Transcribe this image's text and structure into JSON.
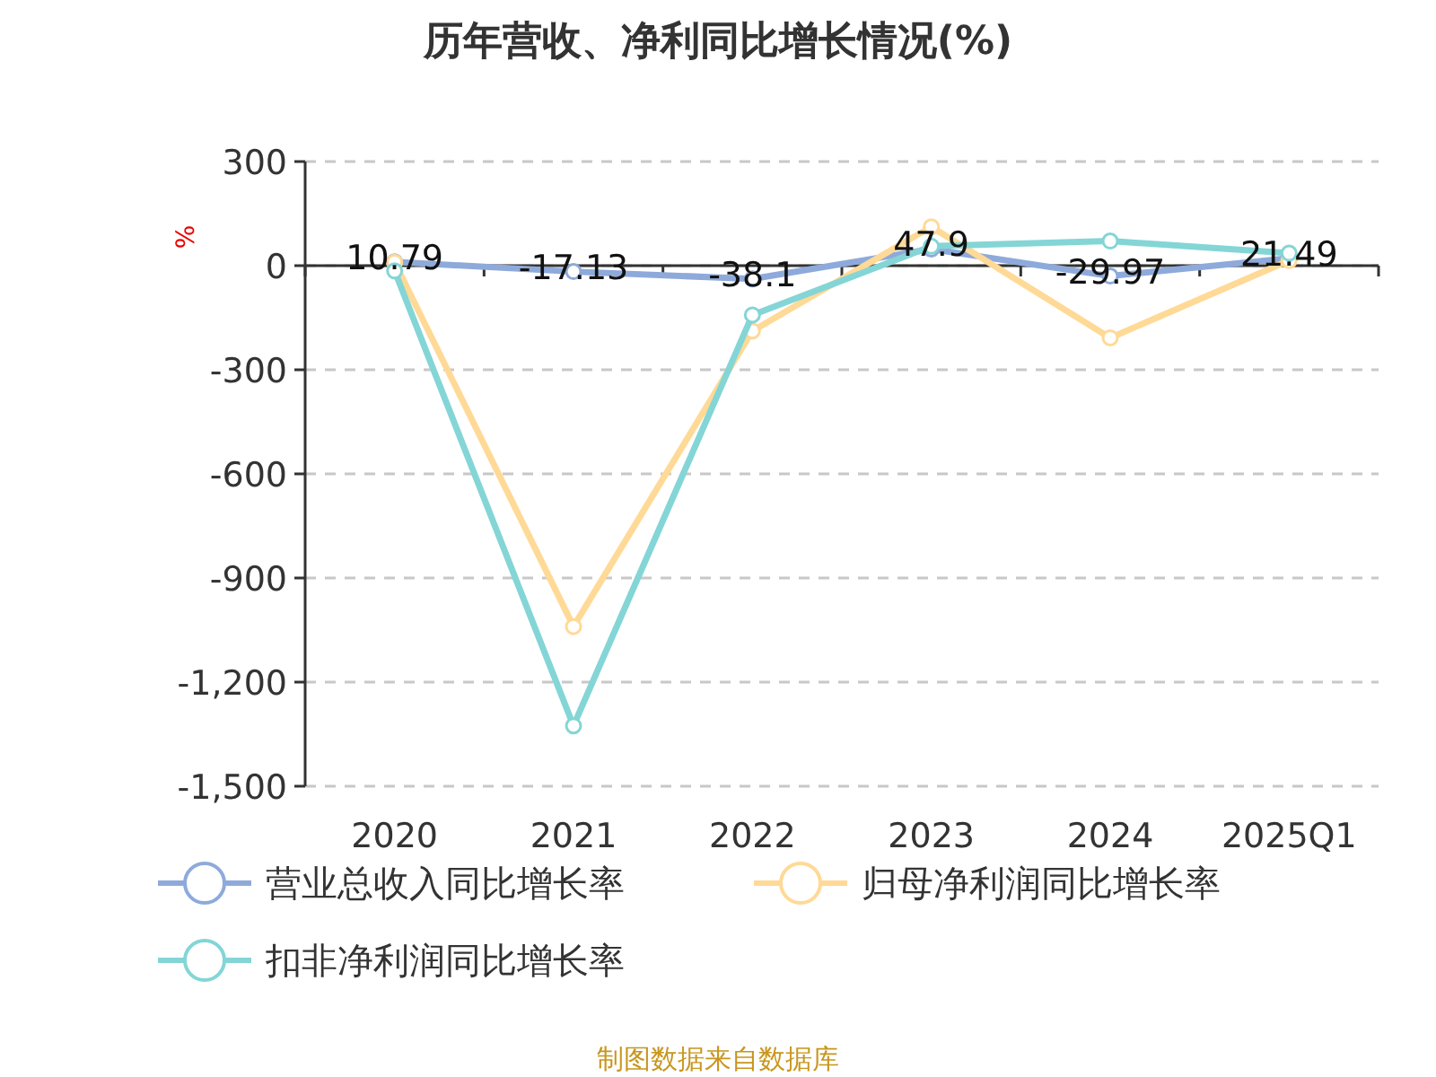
{
  "chart_data": {
    "type": "line",
    "title": "历年营收、净利同比增长情况(%)",
    "ylabel": "%",
    "categories": [
      "2020",
      "2021",
      "2022",
      "2023",
      "2024",
      "2025Q1"
    ],
    "ylim": [
      -1500,
      300
    ],
    "yticks": [
      {
        "value": 300,
        "label": "300"
      },
      {
        "value": 0,
        "label": "0"
      },
      {
        "value": -300,
        "label": "-300"
      },
      {
        "value": -600,
        "label": "-600"
      },
      {
        "value": -900,
        "label": "-900"
      },
      {
        "value": -1200,
        "label": "-1,200"
      },
      {
        "value": -1500,
        "label": "-1,500"
      }
    ],
    "grid": "y",
    "legend": "bottom",
    "marker": "circle",
    "line_style": "solid",
    "series": [
      {
        "name": "营业总收入同比增长率",
        "color": "#8eaadb",
        "values": [
          10.79,
          -17.13,
          -38.1,
          47.9,
          -29.97,
          21.49
        ],
        "value_labels": [
          "10.79",
          "-17.13",
          "-38.1",
          "47.9",
          "-29.97",
          "21.49"
        ]
      },
      {
        "name": "归母净利润同比增长率",
        "color": "#ffd996",
        "values": [
          10,
          -1040,
          -188,
          112,
          -208,
          15
        ]
      },
      {
        "name": "扣非净利润同比增长率",
        "color": "#84d5d6",
        "values": [
          -15,
          -1326,
          -142,
          56,
          71,
          36
        ]
      }
    ],
    "annotations": [
      "制图数据来自数据库"
    ]
  }
}
